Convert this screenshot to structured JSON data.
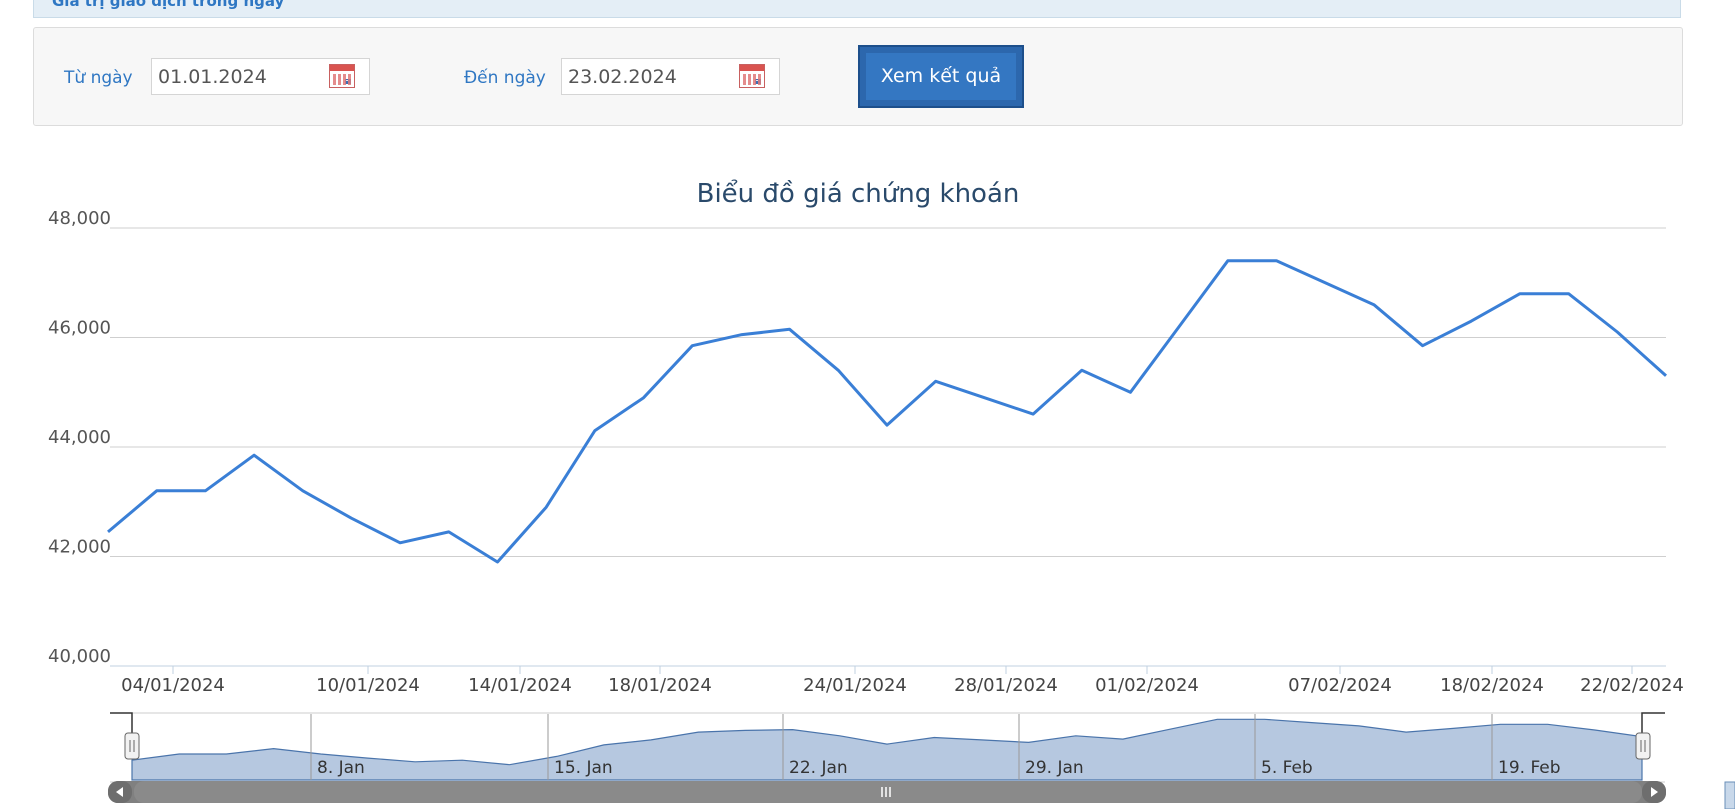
{
  "header": {
    "strip_title": "Giá trị giao dịch trong ngày"
  },
  "filter": {
    "from_label": "Từ ngày",
    "from_value": "01.01.2024",
    "to_label": "Đến ngày",
    "to_value": "23.02.2024",
    "submit_label": "Xem kết quả"
  },
  "colors": {
    "line": "#3a7fd6",
    "navigator_fill": "#b6c8e0",
    "navigator_line": "#4a74ab",
    "scrollbar": "#808080",
    "label_blue": "#2f77c3"
  },
  "chart_data": {
    "type": "line",
    "title": "Biểu đồ giá chứng khoán",
    "xlabel": "",
    "ylabel": "",
    "ylim": [
      40000,
      48000
    ],
    "yticks": [
      "40,000",
      "42,000",
      "44,000",
      "46,000",
      "48,000"
    ],
    "xticks": [
      "04/01/2024",
      "10/01/2024",
      "14/01/2024",
      "18/01/2024",
      "24/01/2024",
      "28/01/2024",
      "01/02/2024",
      "07/02/2024",
      "18/02/2024",
      "22/02/2024"
    ],
    "series": [
      {
        "values": [
          42450,
          43200,
          43200,
          43850,
          43200,
          42700,
          42250,
          42450,
          41900,
          42900,
          44300,
          44900,
          45850,
          46050,
          46150,
          45400,
          44400,
          45200,
          44900,
          44600,
          45400,
          45000,
          46200,
          47400,
          47400,
          47000,
          46600,
          45850,
          46300,
          46800,
          46800,
          46100,
          45300
        ]
      }
    ],
    "navigator_labels": [
      "8. Jan",
      "15. Jan",
      "22. Jan",
      "29. Jan",
      "5. Feb",
      "19. Feb"
    ]
  }
}
